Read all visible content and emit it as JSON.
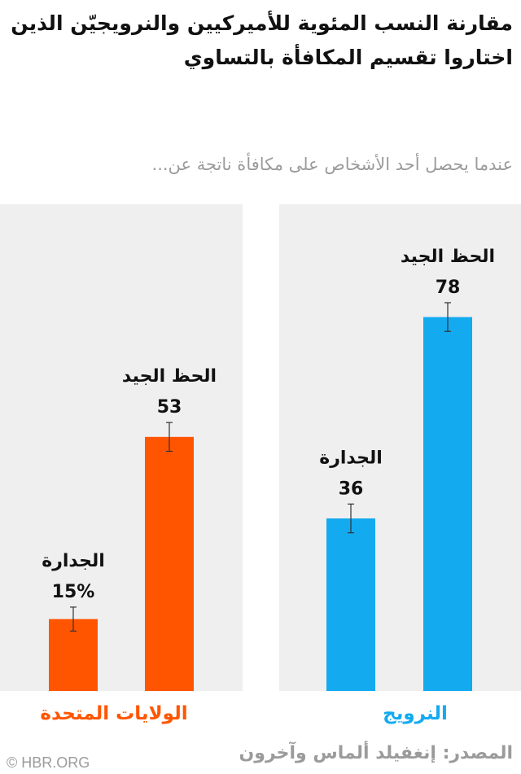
{
  "title": "مقارنة النسب المئوية للأميركيين والنرويجيّن الذين اختاروا تقسيم المكافأة بالتساوي",
  "subtitle": "عندما يحصل أحد الأشخاص على مكافأة ناتجة عن...",
  "source": "المصدر: إنغفيلد ألماس وآخرون",
  "copyright": "© HBR.ORG",
  "colors": {
    "us": "#ff5500",
    "norway": "#13aaf0",
    "panel": "#efefef"
  },
  "chart_data": [
    {
      "type": "bar",
      "group": "النرويج",
      "categories": [
        "الجدارة",
        "الحظ الجيد"
      ],
      "values": [
        36,
        78
      ],
      "value_labels": [
        "36",
        "78"
      ],
      "error": [
        3,
        3
      ],
      "ylim": [
        0,
        100
      ],
      "color": "#13aaf0"
    },
    {
      "type": "bar",
      "group": "الولايات المتحدة",
      "categories": [
        "الجدارة",
        "الحظ الجيد"
      ],
      "values": [
        15,
        53
      ],
      "value_labels": [
        "15%",
        "53"
      ],
      "error": [
        2.5,
        3
      ],
      "ylim": [
        0,
        100
      ],
      "color": "#ff5500"
    }
  ]
}
